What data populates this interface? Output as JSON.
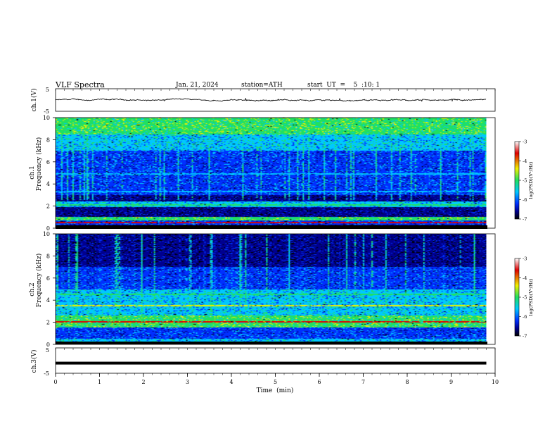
{
  "header": {
    "title": "VLF  Spectra",
    "date": "Jan. 21, 2024",
    "station": "station=ATH",
    "start": "start  UT  =    5  :10: 1"
  },
  "xaxis": {
    "label": "Time  (min)",
    "ticks": [
      "0",
      "1",
      "2",
      "3",
      "4",
      "5",
      "6",
      "7",
      "8",
      "9",
      "10"
    ]
  },
  "panels": {
    "ch1v": {
      "label": "ch.1(V)",
      "ticks": [
        "5",
        "-5"
      ]
    },
    "ch1": {
      "label1": "ch.1",
      "label2": "Frequency  (kHz)",
      "ticks": [
        "10",
        "8",
        "6",
        "4",
        "2",
        "0"
      ]
    },
    "ch2": {
      "label1": "ch.2",
      "label2": "Frequency  (kHz)",
      "ticks": [
        "10",
        "8",
        "6",
        "4",
        "2",
        "0"
      ]
    },
    "ch3v": {
      "label": "ch.3(V)",
      "ticks": [
        "5",
        "-5"
      ]
    }
  },
  "colorbar": {
    "label": "log(PSD)(V²/Hz)",
    "ticks": [
      "-3",
      "-4",
      "-5",
      "-6",
      "-7"
    ]
  },
  "colors": {
    "dark_blue": "#00008f",
    "blue": "#0030ff",
    "cyan": "#00c8ff",
    "green": "#20e060",
    "yellow": "#f0f000",
    "red": "#e00000"
  },
  "chart_data": [
    {
      "type": "line",
      "name": "ch.1(V)",
      "x_unit": "min",
      "xlim": [
        0,
        10
      ],
      "ylim": [
        -5,
        5
      ],
      "y_mean": 0,
      "data_end_min": 9.8,
      "description_ticks_y": [
        5,
        -5
      ]
    },
    {
      "type": "heatmap",
      "name": "ch.1",
      "xlim": [
        0,
        10
      ],
      "ylim": [
        0,
        10
      ],
      "colorbar_range": [
        -7,
        -3
      ],
      "bands_khz": [
        {
          "lo": 0.0,
          "hi": 0.3,
          "level": "dark_blue"
        },
        {
          "lo": 0.3,
          "hi": 0.7,
          "level": "blue"
        },
        {
          "lo": 0.7,
          "hi": 1.0,
          "level": "green"
        },
        {
          "lo": 1.0,
          "hi": 1.9,
          "level": "dark_blue"
        },
        {
          "lo": 1.9,
          "hi": 2.4,
          "level": "cyan"
        },
        {
          "lo": 2.4,
          "hi": 3.0,
          "level": "dark_blue"
        },
        {
          "lo": 3.0,
          "hi": 5.0,
          "level": "blue"
        },
        {
          "lo": 5.0,
          "hi": 7.0,
          "level": "blue"
        },
        {
          "lo": 7.0,
          "hi": 8.5,
          "level": "cyan"
        },
        {
          "lo": 8.5,
          "hi": 10.0,
          "level": "green"
        }
      ],
      "lines_khz": [
        {
          "f": 0.5,
          "level": "red"
        },
        {
          "f": 2.1,
          "level": "green"
        },
        {
          "f": 3.3,
          "level": "cyan"
        },
        {
          "f": 4.9,
          "level": "cyan"
        }
      ]
    },
    {
      "type": "heatmap",
      "name": "ch.2",
      "xlim": [
        0,
        10
      ],
      "ylim": [
        0,
        10
      ],
      "colorbar_range": [
        -7,
        -3
      ],
      "bands_khz": [
        {
          "lo": 0.0,
          "hi": 0.5,
          "level": "cyan"
        },
        {
          "lo": 0.5,
          "hi": 1.5,
          "level": "blue"
        },
        {
          "lo": 1.5,
          "hi": 2.6,
          "level": "green"
        },
        {
          "lo": 2.6,
          "hi": 3.5,
          "level": "cyan"
        },
        {
          "lo": 3.5,
          "hi": 5.0,
          "level": "cyan"
        },
        {
          "lo": 5.0,
          "hi": 7.0,
          "level": "blue"
        },
        {
          "lo": 7.0,
          "hi": 10.0,
          "level": "dark_blue"
        }
      ],
      "lines_khz": [
        {
          "f": 2.0,
          "level": "red"
        },
        {
          "f": 3.5,
          "level": "yellow"
        },
        {
          "f": 4.5,
          "level": "green"
        }
      ]
    },
    {
      "type": "line",
      "name": "ch.3(V)",
      "xlim": [
        0,
        10
      ],
      "ylim": [
        -5,
        5
      ],
      "y_mean": -1,
      "data_end_min": 9.8
    }
  ]
}
